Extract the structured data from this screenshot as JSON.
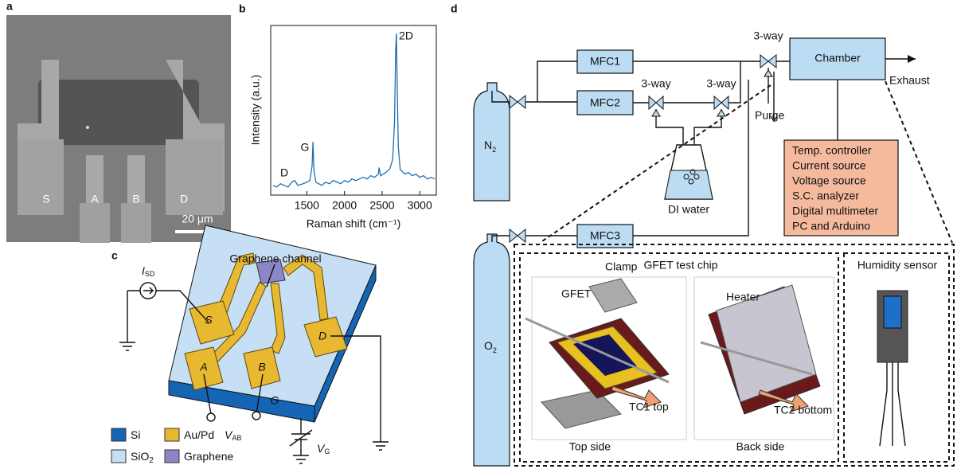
{
  "panel_labels": [
    "a",
    "b",
    "c",
    "d"
  ],
  "panel_a": {
    "electrodes": [
      "S",
      "A",
      "B",
      "D"
    ],
    "scale_bar": "20 μm"
  },
  "chart_data": {
    "type": "line",
    "x_label": "Raman shift (cm⁻¹)",
    "y_label": "Intensity (a.u.)",
    "annotations": [
      "D",
      "G",
      "2D"
    ],
    "x": [
      1050,
      1100,
      1150,
      1200,
      1250,
      1300,
      1340,
      1380,
      1450,
      1500,
      1540,
      1570,
      1582,
      1595,
      1620,
      1700,
      1750,
      1800,
      1850,
      1900,
      1950,
      2000,
      2050,
      2100,
      2150,
      2200,
      2250,
      2300,
      2350,
      2400,
      2450,
      2460,
      2480,
      2550,
      2600,
      2640,
      2665,
      2680,
      2690,
      2700,
      2715,
      2740,
      2800,
      2850,
      2900,
      2950,
      3000,
      3050,
      3100,
      3150,
      3200
    ],
    "series": [
      {
        "color": "#1f6fb2",
        "values": [
          0.06,
          0.05,
          0.07,
          0.06,
          0.05,
          0.08,
          0.09,
          0.06,
          0.07,
          0.08,
          0.09,
          0.18,
          0.33,
          0.15,
          0.08,
          0.06,
          0.08,
          0.07,
          0.09,
          0.08,
          0.07,
          0.09,
          0.08,
          0.1,
          0.09,
          0.1,
          0.11,
          0.1,
          0.12,
          0.11,
          0.13,
          0.17,
          0.12,
          0.14,
          0.16,
          0.22,
          0.45,
          0.9,
          1.0,
          0.7,
          0.3,
          0.16,
          0.13,
          0.14,
          0.12,
          0.13,
          0.11,
          0.12,
          0.1,
          0.11,
          0.1
        ]
      }
    ],
    "xlim": [
      1020,
      3220
    ],
    "ylim": [
      0,
      1.05
    ],
    "xticks": [
      1500,
      2000,
      2500,
      3000
    ]
  },
  "panel_c": {
    "channel_label": "Graphene channel",
    "current": {
      "main": "I",
      "sub": "SD"
    },
    "pads": [
      "S",
      "A",
      "B",
      "D"
    ],
    "gate": "G",
    "v_ab": {
      "main": "V",
      "sub": "AB"
    },
    "v_g": {
      "main": "V",
      "sub": "G"
    },
    "legend": [
      {
        "main": "Si"
      },
      {
        "main": "Au/Pd"
      },
      {
        "main": "SiO",
        "sub": "2"
      },
      {
        "main": "Graphene"
      }
    ]
  },
  "panel_d": {
    "mfc": [
      "MFC1",
      "MFC2",
      "MFC3"
    ],
    "valves": [
      "3-way",
      "3-way",
      "3-way"
    ],
    "chamber": "Chamber",
    "exhaust": "Exhaust",
    "purge": "Purge",
    "n2": {
      "main": "N",
      "sub": "2"
    },
    "o2": {
      "main": "O",
      "sub": "2"
    },
    "water": "DI water",
    "instruments": [
      "Temp. controller",
      "Current source",
      "Voltage source",
      "S.C. analyzer",
      "Digital multimeter",
      "PC and Arduino"
    ],
    "chip_title": "GFET test chip",
    "sensor_title": "Humidity sensor",
    "clamp": "Clamp",
    "gfet": "GFET",
    "heater": "Heater",
    "tc1": "TC1 top",
    "tc2": "TC2 bottom",
    "top_side": "Top side",
    "back_side": "Back side"
  }
}
